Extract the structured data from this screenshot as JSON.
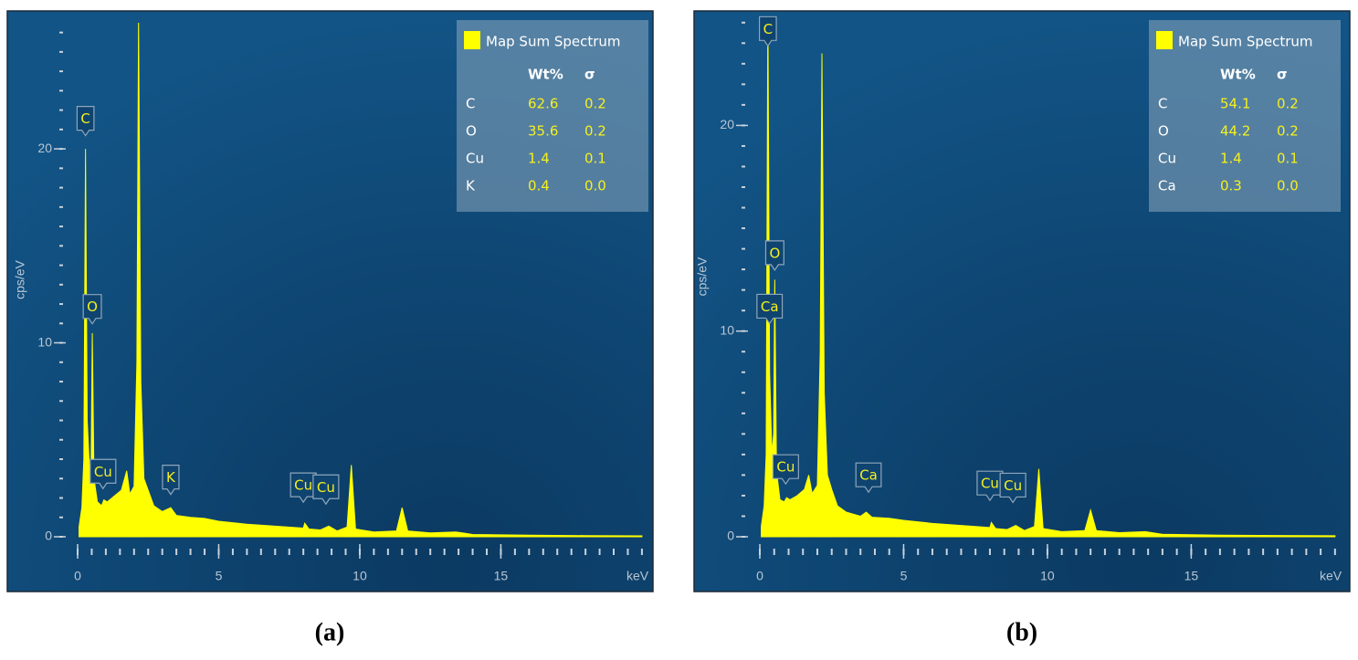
{
  "chart_data": [
    {
      "type": "area",
      "caption": "(a)",
      "x_label": "keV",
      "y_label": "cps/eV",
      "xlim": [
        0,
        20.1
      ],
      "ylim": [
        0,
        26.5
      ],
      "xticks": [
        0,
        5,
        10,
        15
      ],
      "yticks": [
        0,
        10,
        20
      ],
      "x_minor_ticks": [
        0,
        0.5,
        1,
        1.5,
        2,
        2.5,
        3,
        3.5,
        4,
        4.5,
        5,
        5.5,
        6,
        6.5,
        7,
        7.5,
        8,
        8.5,
        9,
        9.5,
        10,
        10.5,
        11,
        11.5,
        12,
        12.5,
        13,
        13.5,
        14,
        14.5,
        15,
        15.5,
        16,
        16.5,
        17,
        17.5,
        18,
        18.5,
        19,
        19.5,
        20
      ],
      "y_minor_ticks": [
        0,
        1,
        2,
        3,
        4,
        5,
        6,
        7,
        8,
        9,
        10,
        11,
        12,
        13,
        14,
        15,
        16,
        17,
        18,
        19,
        20,
        21,
        22,
        23,
        24,
        25,
        26
      ],
      "x": [
        0.05,
        0.15,
        0.22,
        0.28,
        0.34,
        0.42,
        0.48,
        0.52,
        0.58,
        0.7,
        0.85,
        0.93,
        1.05,
        1.3,
        1.55,
        1.74,
        1.85,
        2.0,
        2.1,
        2.16,
        2.24,
        2.35,
        2.5,
        2.7,
        3.0,
        3.3,
        3.5,
        4.0,
        4.5,
        5.0,
        6.0,
        7.0,
        8.0,
        8.05,
        8.2,
        8.6,
        8.9,
        9.2,
        9.55,
        9.7,
        9.85,
        10.5,
        11.3,
        11.5,
        11.7,
        12.5,
        13.4,
        14,
        16,
        18,
        20
      ],
      "series": [
        {
          "name": "Map Sum Spectrum",
          "color": "#ffff00",
          "values": [
            0.5,
            1.5,
            4,
            20,
            6,
            3.5,
            4,
            10.5,
            3,
            1.8,
            1.6,
            1.9,
            1.8,
            2.1,
            2.4,
            3.4,
            2.2,
            2.6,
            9,
            26.8,
            8,
            3,
            2.4,
            1.6,
            1.3,
            1.5,
            1.1,
            1.0,
            0.95,
            0.8,
            0.65,
            0.55,
            0.45,
            0.7,
            0.4,
            0.35,
            0.55,
            0.3,
            0.5,
            3.7,
            0.4,
            0.25,
            0.3,
            1.5,
            0.3,
            0.2,
            0.25,
            0.12,
            0.08,
            0.06,
            0.05
          ]
        }
      ],
      "legend_table": {
        "columns": [
          "Wt%",
          "σ"
        ],
        "rows": [
          [
            "C",
            "62.6",
            "0.2"
          ],
          [
            "O",
            "35.6",
            "0.2"
          ],
          [
            "Cu",
            "1.4",
            "0.1"
          ],
          [
            "K",
            "0.4",
            "0.0"
          ]
        ]
      },
      "annotations": [
        {
          "text": "C",
          "x": 0.28,
          "y": 20.4
        },
        {
          "text": "O",
          "x": 0.52,
          "y": 10.7
        },
        {
          "text": "Cu",
          "x": 0.9,
          "y": 2.2
        },
        {
          "text": "K",
          "x": 3.3,
          "y": 1.9
        },
        {
          "text": "Cu",
          "x": 8.0,
          "y": 1.5
        },
        {
          "text": "Cu",
          "x": 8.8,
          "y": 1.4
        }
      ]
    },
    {
      "type": "area",
      "caption": "(b)",
      "x_label": "keV",
      "y_label": "cps/eV",
      "xlim": [
        0,
        20.1
      ],
      "ylim": [
        0,
        25.3
      ],
      "xticks": [
        0,
        5,
        10,
        15
      ],
      "yticks": [
        0,
        10,
        20
      ],
      "x_minor_ticks": [
        0,
        0.5,
        1,
        1.5,
        2,
        2.5,
        3,
        3.5,
        4,
        4.5,
        5,
        5.5,
        6,
        6.5,
        7,
        7.5,
        8,
        8.5,
        9,
        9.5,
        10,
        10.5,
        11,
        11.5,
        12,
        12.5,
        13,
        13.5,
        14,
        14.5,
        15,
        15.5,
        16,
        16.5,
        17,
        17.5,
        18,
        18.5,
        19,
        19.5,
        20
      ],
      "y_minor_ticks": [
        0,
        1,
        2,
        3,
        4,
        5,
        6,
        7,
        8,
        9,
        10,
        11,
        12,
        13,
        14,
        15,
        16,
        17,
        18,
        19,
        20,
        21,
        22,
        23,
        24,
        25
      ],
      "x": [
        0.05,
        0.15,
        0.22,
        0.28,
        0.34,
        0.42,
        0.48,
        0.52,
        0.58,
        0.7,
        0.85,
        0.93,
        1.05,
        1.3,
        1.55,
        1.7,
        1.82,
        2.0,
        2.1,
        2.16,
        2.24,
        2.35,
        2.5,
        2.7,
        3.0,
        3.5,
        3.7,
        3.9,
        4.5,
        5.0,
        6.0,
        7.0,
        8.0,
        8.05,
        8.2,
        8.6,
        8.9,
        9.2,
        9.55,
        9.7,
        9.85,
        10.5,
        11.3,
        11.5,
        11.7,
        12.5,
        13.4,
        14,
        16,
        18,
        20
      ],
      "series": [
        {
          "name": "Map Sum Spectrum",
          "color": "#ffff00",
          "values": [
            0.5,
            1.5,
            4,
            26,
            8,
            4,
            5,
            12.5,
            3.2,
            1.8,
            1.7,
            1.9,
            1.8,
            2.0,
            2.3,
            3.0,
            2.1,
            2.5,
            9,
            23.5,
            7,
            3,
            2.3,
            1.5,
            1.2,
            1.0,
            1.2,
            0.95,
            0.9,
            0.8,
            0.65,
            0.55,
            0.45,
            0.7,
            0.4,
            0.35,
            0.55,
            0.3,
            0.5,
            3.3,
            0.4,
            0.25,
            0.3,
            1.3,
            0.3,
            0.2,
            0.25,
            0.12,
            0.08,
            0.06,
            0.05
          ]
        }
      ],
      "legend_table": {
        "columns": [
          "Wt%",
          "σ"
        ],
        "rows": [
          [
            "C",
            "54.1",
            "0.2"
          ],
          [
            "O",
            "44.2",
            "0.2"
          ],
          [
            "Cu",
            "1.4",
            "0.1"
          ],
          [
            "Ca",
            "0.3",
            "0.0"
          ]
        ]
      },
      "annotations": [
        {
          "text": "C",
          "x": 0.28,
          "y": 23.6
        },
        {
          "text": "O",
          "x": 0.52,
          "y": 12.7
        },
        {
          "text": "Ca",
          "x": 0.34,
          "y": 10.1
        },
        {
          "text": "Cu",
          "x": 0.9,
          "y": 2.3
        },
        {
          "text": "Ca",
          "x": 3.78,
          "y": 1.9
        },
        {
          "text": "Cu",
          "x": 8.0,
          "y": 1.5
        },
        {
          "text": "Cu",
          "x": 8.8,
          "y": 1.4
        }
      ]
    }
  ]
}
